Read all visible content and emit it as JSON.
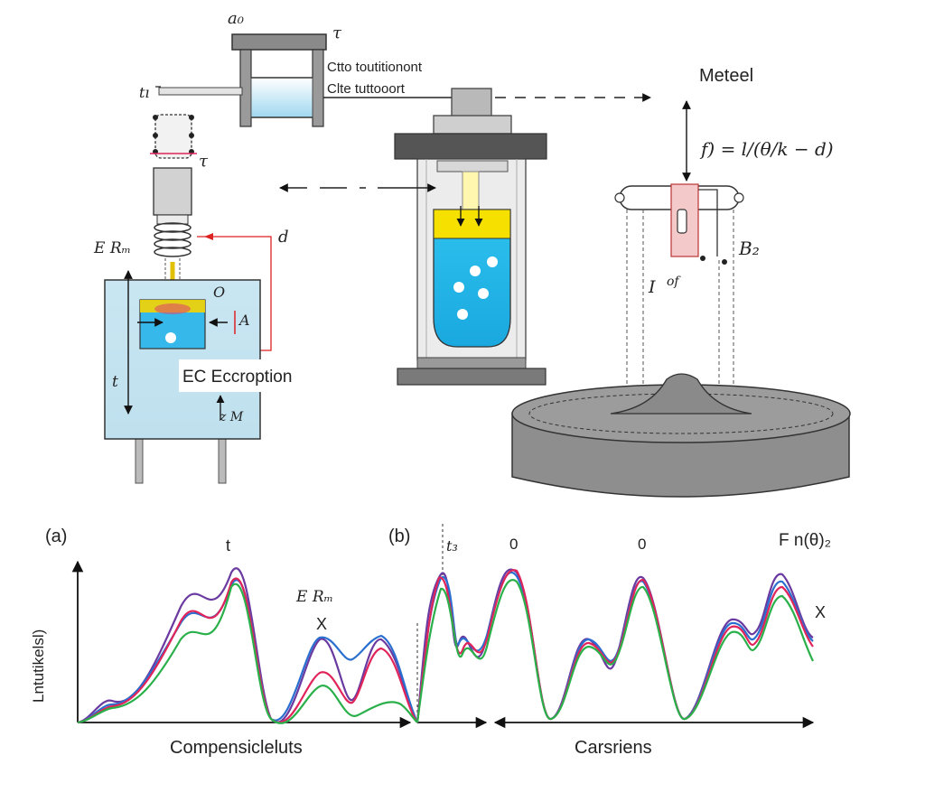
{
  "diagram": {
    "top_left_labels": {
      "a0": "a₀",
      "tau_top": "τ",
      "t_left": "tı",
      "tau_mid": "τ",
      "header_line1": "Ctto toutitionont",
      "header_line2": "Clte tuttooort",
      "e_r": "E Rₘ",
      "d": "d",
      "o": "O",
      "a_right": "A",
      "t_vert": "t",
      "box_text": "EC Eccroption",
      "z_m": "z M"
    },
    "right_labels": {
      "meteel": "Meteel",
      "formula": "f) = l/(θ/k − d)",
      "b2": "B₂",
      "i_label": "I",
      "of": "of"
    }
  },
  "chart_data": {
    "type": "line",
    "panel_a": {
      "label": "(a)",
      "top_mark": "t",
      "annotation": "E Rₘ",
      "marker": "X",
      "xlabel": "Compensicleluts"
    },
    "panel_b": {
      "label": "(b)",
      "marks": [
        "t₃",
        "0",
        "0"
      ],
      "annotation": "F n(θ)₂",
      "marker": "X",
      "xlabel": "Carsriens"
    },
    "ylabel": "Lntutikelsl)",
    "series_colors": [
      "#6a3aa0",
      "#2a6fd0",
      "#e0245a",
      "#2ab04a"
    ],
    "grid": false
  }
}
